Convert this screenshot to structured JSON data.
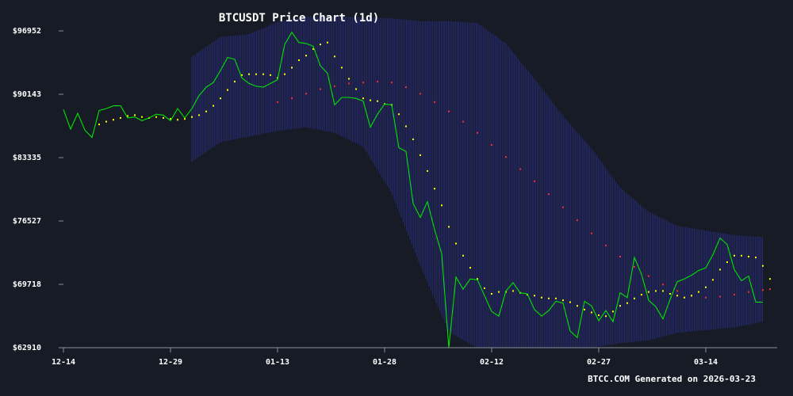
{
  "colors": {
    "background": "#171b26",
    "price_line": "#00e400",
    "ma_short": "#ffff00",
    "ma_long": "#ff2a2a",
    "band": "#2b2f8a",
    "axis": "#8a8f99"
  },
  "chart_data": {
    "type": "line",
    "title": "BTCUSDT Price Chart (1d)",
    "footer": "BTCC.COM Generated on 2026-03-23",
    "x_start": "2025-12-14",
    "x_end": "2026-03-23",
    "ylim": [
      62910,
      98500
    ],
    "y_ticks": [
      62910,
      69718,
      76527,
      83335,
      90143,
      96952
    ],
    "y_tick_labels": [
      "$62910",
      "$69718",
      "$76527",
      "$83335",
      "$90143",
      "$96952"
    ],
    "x_tick_dates": [
      "2025-12-14",
      "2025-12-29",
      "2026-01-13",
      "2026-01-28",
      "2026-02-12",
      "2026-02-27",
      "2026-03-14"
    ],
    "x_tick_labels": [
      "12-14",
      "12-29",
      "01-13",
      "01-28",
      "02-12",
      "02-27",
      "03-14"
    ],
    "grid": false,
    "series": [
      {
        "key": "price",
        "style": "line",
        "values": [
          [
            "2025-12-14",
            88500
          ],
          [
            "2025-12-15",
            86400
          ],
          [
            "2025-12-16",
            88100
          ],
          [
            "2025-12-17",
            86300
          ],
          [
            "2025-12-18",
            85500
          ],
          [
            "2025-12-19",
            88400
          ],
          [
            "2025-12-20",
            88600
          ],
          [
            "2025-12-21",
            88900
          ],
          [
            "2025-12-22",
            88900
          ],
          [
            "2025-12-23",
            87600
          ],
          [
            "2025-12-24",
            87700
          ],
          [
            "2025-12-25",
            87300
          ],
          [
            "2025-12-26",
            87600
          ],
          [
            "2025-12-27",
            88000
          ],
          [
            "2025-12-28",
            87900
          ],
          [
            "2025-12-29",
            87300
          ],
          [
            "2025-12-30",
            88600
          ],
          [
            "2025-12-31",
            87600
          ],
          [
            "2026-01-01",
            88600
          ],
          [
            "2026-01-02",
            90000
          ],
          [
            "2026-01-03",
            90900
          ],
          [
            "2026-01-04",
            91400
          ],
          [
            "2026-01-05",
            92700
          ],
          [
            "2026-01-06",
            94100
          ],
          [
            "2026-01-07",
            93900
          ],
          [
            "2026-01-08",
            91900
          ],
          [
            "2026-01-09",
            91300
          ],
          [
            "2026-01-10",
            91000
          ],
          [
            "2026-01-11",
            90900
          ],
          [
            "2026-01-12",
            91300
          ],
          [
            "2026-01-13",
            91700
          ],
          [
            "2026-01-14",
            95500
          ],
          [
            "2026-01-15",
            96800
          ],
          [
            "2026-01-16",
            95700
          ],
          [
            "2026-01-17",
            95600
          ],
          [
            "2026-01-18",
            95300
          ],
          [
            "2026-01-19",
            93200
          ],
          [
            "2026-01-20",
            92400
          ],
          [
            "2026-01-21",
            89000
          ],
          [
            "2026-01-22",
            89800
          ],
          [
            "2026-01-23",
            89800
          ],
          [
            "2026-01-24",
            89700
          ],
          [
            "2026-01-25",
            89400
          ],
          [
            "2026-01-26",
            86600
          ],
          [
            "2026-01-27",
            88000
          ],
          [
            "2026-01-28",
            89100
          ],
          [
            "2026-01-29",
            89000
          ],
          [
            "2026-01-30",
            84400
          ],
          [
            "2026-01-31",
            84000
          ],
          [
            "2026-02-01",
            78400
          ],
          [
            "2026-02-02",
            76900
          ],
          [
            "2026-02-03",
            78600
          ],
          [
            "2026-02-04",
            75600
          ],
          [
            "2026-02-05",
            73000
          ],
          [
            "2026-02-06",
            62800
          ],
          [
            "2026-02-07",
            70500
          ],
          [
            "2026-02-08",
            69200
          ],
          [
            "2026-02-09",
            70300
          ],
          [
            "2026-02-10",
            70200
          ],
          [
            "2026-02-11",
            68500
          ],
          [
            "2026-02-12",
            66800
          ],
          [
            "2026-02-13",
            66300
          ],
          [
            "2026-02-14",
            69000
          ],
          [
            "2026-02-15",
            69900
          ],
          [
            "2026-02-16",
            68800
          ],
          [
            "2026-02-17",
            68700
          ],
          [
            "2026-02-18",
            67000
          ],
          [
            "2026-02-19",
            66300
          ],
          [
            "2026-02-20",
            66900
          ],
          [
            "2026-02-21",
            67900
          ],
          [
            "2026-02-22",
            67700
          ],
          [
            "2026-02-23",
            64700
          ],
          [
            "2026-02-24",
            64000
          ],
          [
            "2026-02-25",
            67900
          ],
          [
            "2026-02-26",
            67400
          ],
          [
            "2026-02-27",
            65800
          ],
          [
            "2026-02-28",
            66900
          ],
          [
            "2026-03-01",
            65700
          ],
          [
            "2026-03-02",
            68800
          ],
          [
            "2026-03-03",
            68300
          ],
          [
            "2026-03-04",
            72600
          ],
          [
            "2026-03-05",
            70800
          ],
          [
            "2026-03-06",
            68000
          ],
          [
            "2026-03-07",
            67300
          ],
          [
            "2026-03-08",
            66000
          ],
          [
            "2026-03-09",
            68100
          ],
          [
            "2026-03-10",
            70000
          ],
          [
            "2026-03-11",
            70300
          ],
          [
            "2026-03-12",
            70700
          ],
          [
            "2026-03-13",
            71200
          ],
          [
            "2026-03-14",
            71500
          ],
          [
            "2026-03-15",
            72900
          ],
          [
            "2026-03-16",
            74700
          ],
          [
            "2026-03-17",
            74000
          ],
          [
            "2026-03-18",
            71300
          ],
          [
            "2026-03-19",
            70100
          ],
          [
            "2026-03-20",
            70600
          ],
          [
            "2026-03-21",
            67800
          ],
          [
            "2026-03-22",
            67800
          ]
        ]
      },
      {
        "key": "ma_short",
        "style": "dots",
        "values": [
          [
            "2025-12-19",
            86900
          ],
          [
            "2025-12-20",
            87200
          ],
          [
            "2025-12-21",
            87400
          ],
          [
            "2025-12-22",
            87600
          ],
          [
            "2025-12-23",
            87800
          ],
          [
            "2025-12-24",
            87900
          ],
          [
            "2025-12-25",
            87700
          ],
          [
            "2025-12-26",
            87600
          ],
          [
            "2025-12-27",
            87700
          ],
          [
            "2025-12-28",
            87600
          ],
          [
            "2025-12-29",
            87500
          ],
          [
            "2025-12-30",
            87400
          ],
          [
            "2025-12-31",
            87500
          ],
          [
            "2026-01-01",
            87700
          ],
          [
            "2026-01-02",
            87900
          ],
          [
            "2026-01-03",
            88300
          ],
          [
            "2026-01-04",
            88900
          ],
          [
            "2026-01-05",
            89700
          ],
          [
            "2026-01-06",
            90600
          ],
          [
            "2026-01-07",
            91500
          ],
          [
            "2026-01-08",
            92200
          ],
          [
            "2026-01-09",
            92300
          ],
          [
            "2026-01-10",
            92300
          ],
          [
            "2026-01-11",
            92300
          ],
          [
            "2026-01-12",
            92200
          ],
          [
            "2026-01-13",
            91900
          ],
          [
            "2026-01-14",
            92300
          ],
          [
            "2026-01-15",
            93000
          ],
          [
            "2026-01-16",
            93800
          ],
          [
            "2026-01-17",
            94300
          ],
          [
            "2026-01-18",
            95000
          ],
          [
            "2026-01-19",
            95500
          ],
          [
            "2026-01-20",
            95700
          ],
          [
            "2026-01-21",
            94200
          ],
          [
            "2026-01-22",
            93000
          ],
          [
            "2026-01-23",
            91800
          ],
          [
            "2026-01-24",
            90700
          ],
          [
            "2026-01-25",
            89700
          ],
          [
            "2026-01-26",
            89500
          ],
          [
            "2026-01-27",
            89400
          ],
          [
            "2026-01-28",
            89100
          ],
          [
            "2026-01-29",
            89000
          ],
          [
            "2026-01-30",
            88000
          ],
          [
            "2026-01-31",
            86700
          ],
          [
            "2026-02-01",
            85300
          ],
          [
            "2026-02-02",
            83600
          ],
          [
            "2026-02-03",
            81900
          ],
          [
            "2026-02-04",
            80000
          ],
          [
            "2026-02-05",
            78200
          ],
          [
            "2026-02-06",
            75900
          ],
          [
            "2026-02-07",
            74100
          ],
          [
            "2026-02-08",
            72800
          ],
          [
            "2026-02-09",
            71500
          ],
          [
            "2026-02-10",
            70300
          ],
          [
            "2026-02-11",
            69300
          ],
          [
            "2026-02-12",
            68700
          ],
          [
            "2026-02-13",
            68900
          ],
          [
            "2026-02-14",
            68900
          ],
          [
            "2026-02-15",
            69000
          ],
          [
            "2026-02-16",
            68800
          ],
          [
            "2026-02-17",
            68600
          ],
          [
            "2026-02-18",
            68500
          ],
          [
            "2026-02-19",
            68300
          ],
          [
            "2026-02-20",
            68200
          ],
          [
            "2026-02-21",
            68200
          ],
          [
            "2026-02-22",
            68000
          ],
          [
            "2026-02-23",
            67800
          ],
          [
            "2026-02-24",
            67400
          ],
          [
            "2026-02-25",
            67000
          ],
          [
            "2026-02-26",
            66700
          ],
          [
            "2026-02-27",
            66400
          ],
          [
            "2026-02-28",
            66300
          ],
          [
            "2026-03-01",
            66800
          ],
          [
            "2026-03-02",
            67400
          ],
          [
            "2026-03-03",
            67700
          ],
          [
            "2026-03-04",
            68200
          ],
          [
            "2026-03-05",
            68600
          ],
          [
            "2026-03-06",
            68900
          ],
          [
            "2026-03-07",
            69000
          ],
          [
            "2026-03-08",
            69000
          ],
          [
            "2026-03-09",
            68700
          ],
          [
            "2026-03-10",
            68500
          ],
          [
            "2026-03-11",
            68300
          ],
          [
            "2026-03-12",
            68500
          ],
          [
            "2026-03-13",
            68900
          ],
          [
            "2026-03-14",
            69400
          ],
          [
            "2026-03-15",
            70200
          ],
          [
            "2026-03-16",
            71300
          ],
          [
            "2026-03-17",
            72100
          ],
          [
            "2026-03-18",
            72800
          ],
          [
            "2026-03-19",
            72800
          ],
          [
            "2026-03-20",
            72700
          ],
          [
            "2026-03-21",
            72600
          ],
          [
            "2026-03-22",
            71700
          ],
          [
            "2026-03-23",
            70300
          ]
        ]
      },
      {
        "key": "ma_long",
        "style": "dots",
        "values": [
          [
            "2026-01-13",
            89300
          ],
          [
            "2026-01-15",
            89700
          ],
          [
            "2026-01-17",
            90200
          ],
          [
            "2026-01-19",
            90700
          ],
          [
            "2026-01-21",
            91000
          ],
          [
            "2026-01-23",
            91300
          ],
          [
            "2026-01-25",
            91400
          ],
          [
            "2026-01-27",
            91500
          ],
          [
            "2026-01-29",
            91400
          ],
          [
            "2026-01-31",
            90900
          ],
          [
            "2026-02-02",
            90200
          ],
          [
            "2026-02-04",
            89300
          ],
          [
            "2026-02-06",
            88300
          ],
          [
            "2026-02-08",
            87200
          ],
          [
            "2026-02-10",
            86000
          ],
          [
            "2026-02-12",
            84700
          ],
          [
            "2026-02-14",
            83400
          ],
          [
            "2026-02-16",
            82100
          ],
          [
            "2026-02-18",
            80800
          ],
          [
            "2026-02-20",
            79400
          ],
          [
            "2026-02-22",
            78000
          ],
          [
            "2026-02-24",
            76600
          ],
          [
            "2026-02-26",
            75200
          ],
          [
            "2026-02-28",
            73900
          ],
          [
            "2026-03-02",
            72700
          ],
          [
            "2026-03-04",
            71600
          ],
          [
            "2026-03-06",
            70600
          ],
          [
            "2026-03-08",
            69700
          ],
          [
            "2026-03-10",
            69000
          ],
          [
            "2026-03-12",
            68500
          ],
          [
            "2026-03-14",
            68300
          ],
          [
            "2026-03-16",
            68400
          ],
          [
            "2026-03-18",
            68600
          ],
          [
            "2026-03-20",
            68900
          ],
          [
            "2026-03-22",
            69100
          ],
          [
            "2026-03-23",
            69200
          ]
        ]
      },
      {
        "key": "band",
        "style": "band",
        "values": [
          [
            "2026-01-01",
            82900,
            94200
          ],
          [
            "2026-01-05",
            85000,
            96300
          ],
          [
            "2026-01-09",
            85600,
            96600
          ],
          [
            "2026-01-13",
            86200,
            97900
          ],
          [
            "2026-01-17",
            86600,
            98500
          ],
          [
            "2026-01-21",
            86000,
            98500
          ],
          [
            "2026-01-25",
            84500,
            98400
          ],
          [
            "2026-01-29",
            79500,
            98300
          ],
          [
            "2026-02-02",
            71700,
            98000
          ],
          [
            "2026-02-06",
            64600,
            98000
          ],
          [
            "2026-02-10",
            62900,
            97800
          ],
          [
            "2026-02-14",
            62900,
            95600
          ],
          [
            "2026-02-18",
            62900,
            91800
          ],
          [
            "2026-02-22",
            62900,
            87800
          ],
          [
            "2026-02-26",
            62900,
            84300
          ],
          [
            "2026-03-02",
            63400,
            80100
          ],
          [
            "2026-03-06",
            63700,
            77500
          ],
          [
            "2026-03-10",
            64500,
            76000
          ],
          [
            "2026-03-14",
            64800,
            75500
          ],
          [
            "2026-03-18",
            65100,
            75000
          ],
          [
            "2026-03-22",
            65700,
            74800
          ]
        ]
      }
    ]
  }
}
